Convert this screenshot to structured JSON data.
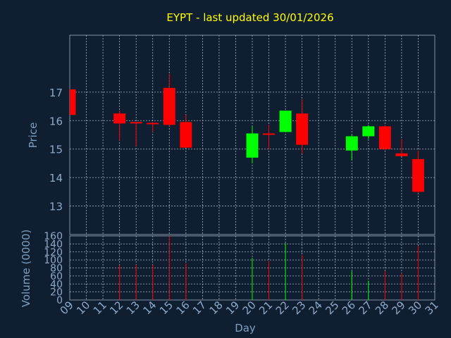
{
  "chart_data": {
    "type": "candlestick",
    "title": "EYPT - last updated 30/01/2026",
    "xlabel": "Day",
    "price_panel": {
      "ylabel": "Price",
      "ylim": [
        12.0,
        19.0
      ],
      "yticks": [
        13,
        14,
        15,
        16,
        17
      ],
      "grid": true
    },
    "volume_panel": {
      "ylabel": "Volume (0000)",
      "ylim": [
        0,
        160
      ],
      "yticks": [
        0,
        20,
        40,
        60,
        80,
        100,
        120,
        140,
        160
      ],
      "grid": true
    },
    "x_ticks": [
      "09",
      "10",
      "11",
      "12",
      "13",
      "14",
      "15",
      "16",
      "17",
      "18",
      "19",
      "20",
      "21",
      "22",
      "23",
      "24",
      "25",
      "26",
      "27",
      "28",
      "29",
      "30",
      "31"
    ],
    "candles": [
      {
        "day": "09",
        "open": 17.1,
        "high": 17.1,
        "low": 16.2,
        "close": 16.2,
        "volume": 0
      },
      {
        "day": "12",
        "open": 16.25,
        "high": 16.35,
        "low": 15.3,
        "close": 15.9,
        "volume": 87
      },
      {
        "day": "13",
        "open": 15.95,
        "high": 15.95,
        "low": 15.1,
        "close": 15.9,
        "volume": 88
      },
      {
        "day": "14",
        "open": 15.92,
        "high": 15.95,
        "low": 15.6,
        "close": 15.9,
        "volume": 88
      },
      {
        "day": "15",
        "open": 17.15,
        "high": 17.65,
        "low": 15.8,
        "close": 15.85,
        "volume": 160
      },
      {
        "day": "16",
        "open": 15.95,
        "high": 16.2,
        "low": 15.05,
        "close": 15.05,
        "volume": 91
      },
      {
        "day": "20",
        "open": 14.7,
        "high": 15.8,
        "low": 14.5,
        "close": 15.55,
        "volume": 105
      },
      {
        "day": "21",
        "open": 15.55,
        "high": 15.85,
        "low": 15.0,
        "close": 15.5,
        "volume": 97
      },
      {
        "day": "22",
        "open": 15.6,
        "high": 16.35,
        "low": 15.6,
        "close": 16.35,
        "volume": 142
      },
      {
        "day": "23",
        "open": 16.25,
        "high": 16.75,
        "low": 14.85,
        "close": 15.15,
        "volume": 112
      },
      {
        "day": "26",
        "open": 14.95,
        "high": 15.5,
        "low": 14.6,
        "close": 15.45,
        "volume": 72
      },
      {
        "day": "27",
        "open": 15.45,
        "high": 15.85,
        "low": 15.35,
        "close": 15.8,
        "volume": 48
      },
      {
        "day": "28",
        "open": 15.8,
        "high": 15.85,
        "low": 14.95,
        "close": 15.0,
        "volume": 73
      },
      {
        "day": "29",
        "open": 14.85,
        "high": 15.35,
        "low": 14.75,
        "close": 14.75,
        "volume": 67
      },
      {
        "day": "30",
        "open": 14.65,
        "high": 14.95,
        "low": 13.45,
        "close": 13.5,
        "volume": 135
      }
    ],
    "colors": {
      "background": "#0f1e30",
      "axis": "#8090a4",
      "grid": "#aab4c4",
      "title": "#ffff00",
      "label": "#7f9fbf",
      "tick_label": "#8fa9c8",
      "up": "#00ff00",
      "down": "#ff0000"
    }
  }
}
